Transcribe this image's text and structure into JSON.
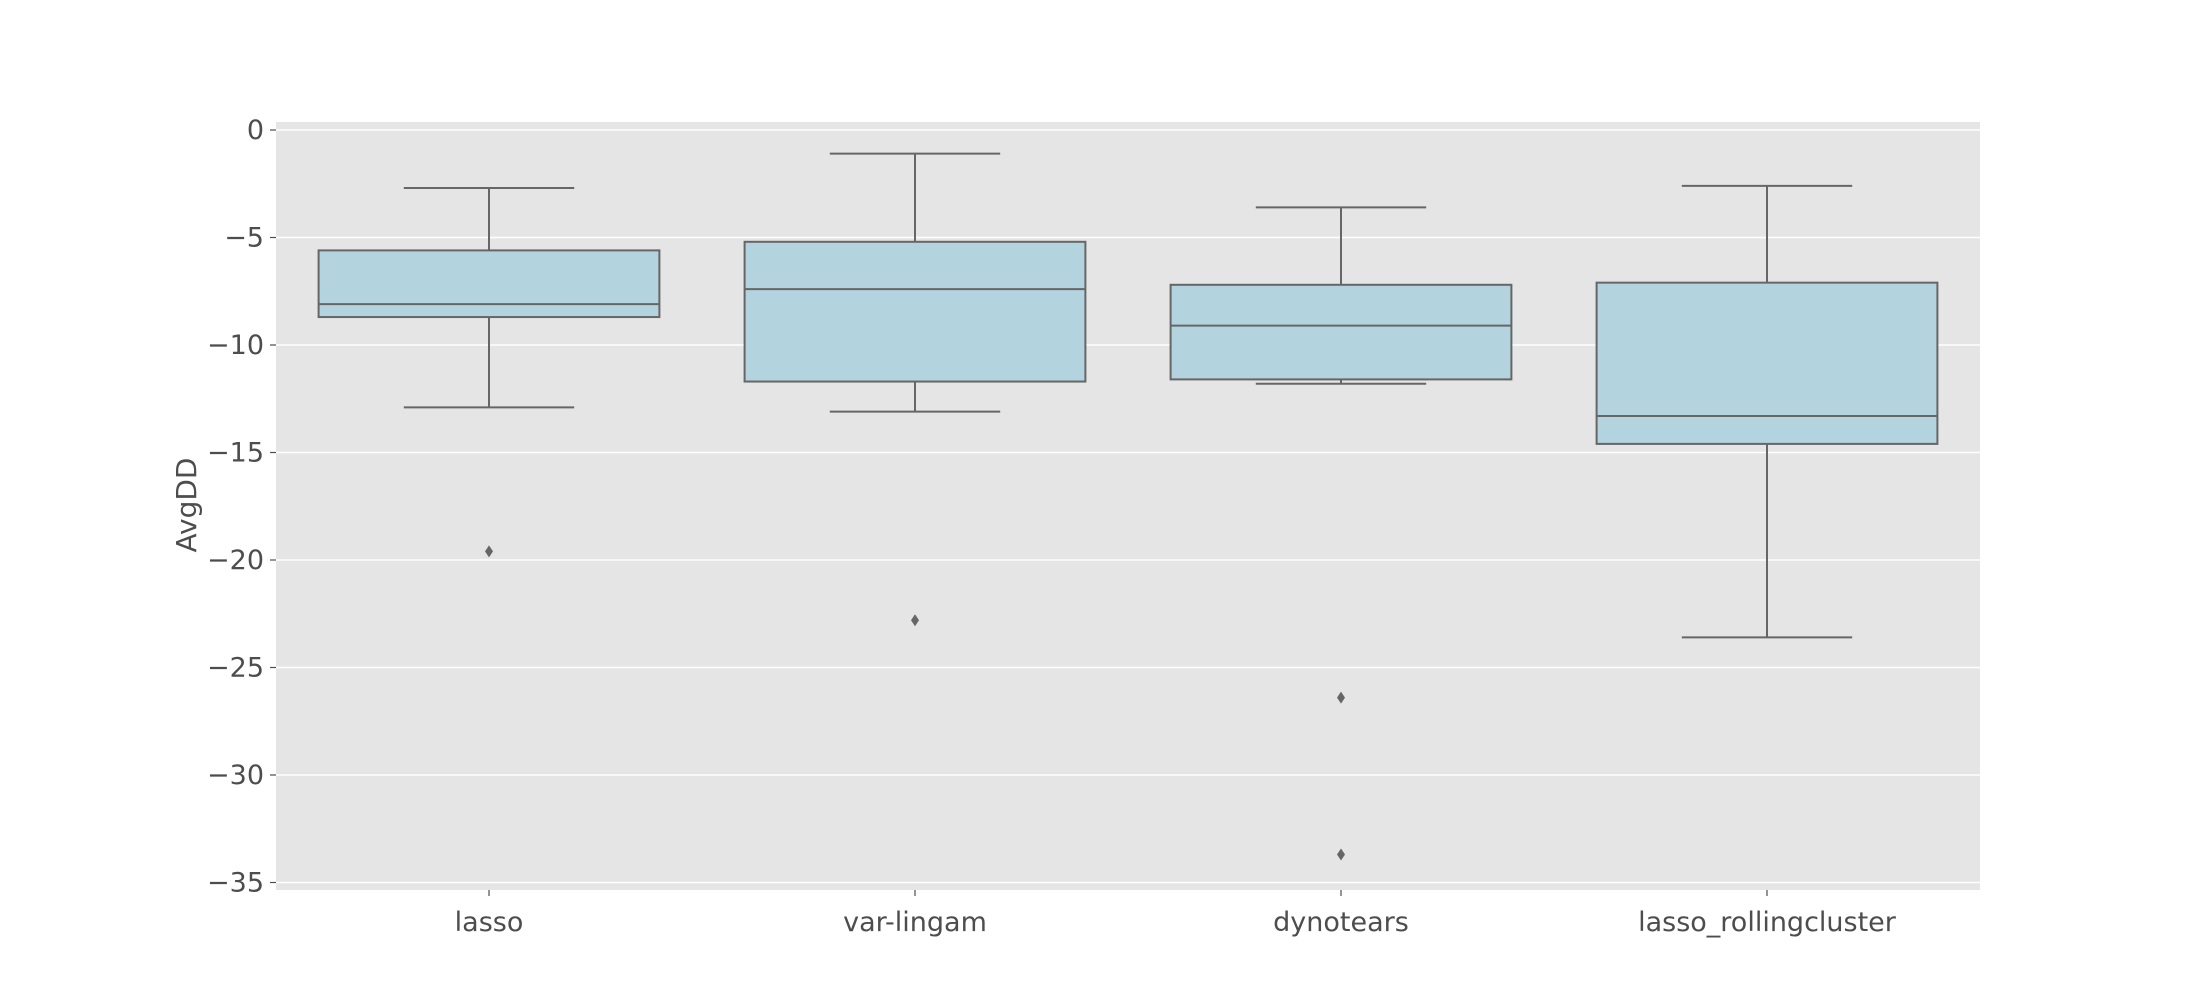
{
  "chart_data": {
    "type": "box",
    "ylabel": "AvgDD",
    "xlabel": "",
    "title": "",
    "ylim": [
      -35.3,
      0.5
    ],
    "yticks": [
      0,
      -5,
      -10,
      -15,
      -20,
      -25,
      -30,
      -35
    ],
    "ytick_labels": [
      "0",
      "−5",
      "−10",
      "−15",
      "−20",
      "−25",
      "−30",
      "−35"
    ],
    "grid": true,
    "categories": [
      "lasso",
      "var-lingam",
      "dynotears",
      "lasso_rollingcluster"
    ],
    "boxes": [
      {
        "category": "lasso",
        "whisker_low": -12.9,
        "q1": -8.7,
        "median": -8.1,
        "q3": -5.6,
        "whisker_high": -2.7,
        "outliers": [
          -19.6
        ]
      },
      {
        "category": "var-lingam",
        "whisker_low": -13.1,
        "q1": -11.7,
        "median": -7.4,
        "q3": -5.2,
        "whisker_high": -1.1,
        "outliers": [
          -22.8
        ]
      },
      {
        "category": "dynotears",
        "whisker_low": -11.8,
        "q1": -11.6,
        "median": -9.1,
        "q3": -7.2,
        "whisker_high": -3.6,
        "outliers": [
          -26.4,
          -33.7
        ]
      },
      {
        "category": "lasso_rollingcluster",
        "whisker_low": -23.6,
        "q1": -14.6,
        "median": -13.3,
        "q3": -7.1,
        "whisker_high": -2.6,
        "outliers": []
      }
    ],
    "colors": {
      "plot_background": "#e5e5e5",
      "box_fill": "#b3d4df",
      "line": "#666666",
      "grid": "#ffffff",
      "text": "#4d4d4d"
    }
  }
}
